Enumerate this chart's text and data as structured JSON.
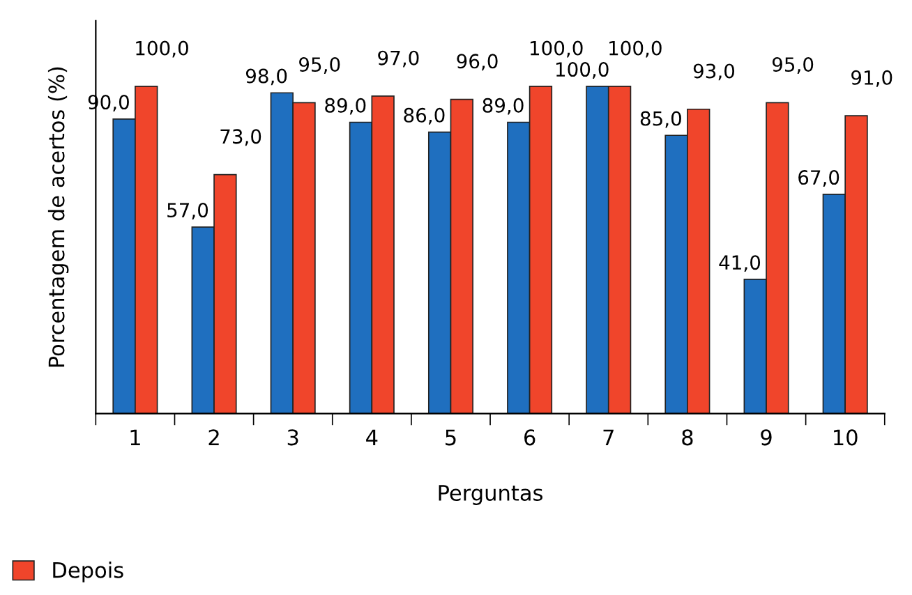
{
  "chart_data": {
    "type": "bar",
    "xlabel": "Perguntas",
    "ylabel": "Porcentagem de acertos (%)",
    "categories": [
      "1",
      "2",
      "3",
      "4",
      "5",
      "6",
      "7",
      "8",
      "9",
      "10"
    ],
    "series": [
      {
        "color": "#1f6fbf",
        "values": [
          90,
          57,
          98,
          89,
          86,
          89,
          100,
          85,
          41,
          67
        ],
        "value_labels": [
          "90,0",
          "57,0",
          "98,0",
          "89,0",
          "86,0",
          "89,0",
          "100,0",
          "85,0",
          "41,0",
          "67,0"
        ]
      },
      {
        "name": "Depois",
        "color": "#f0452b",
        "values": [
          100,
          73,
          95,
          97,
          96,
          100,
          100,
          93,
          95,
          91
        ],
        "value_labels": [
          "100,0",
          "73,0",
          "95,0",
          "97,0",
          "96,0",
          "100,0",
          "100,0",
          "93,0",
          "95,0",
          "91,0"
        ]
      }
    ],
    "grid": false,
    "legend": "bottom left"
  }
}
